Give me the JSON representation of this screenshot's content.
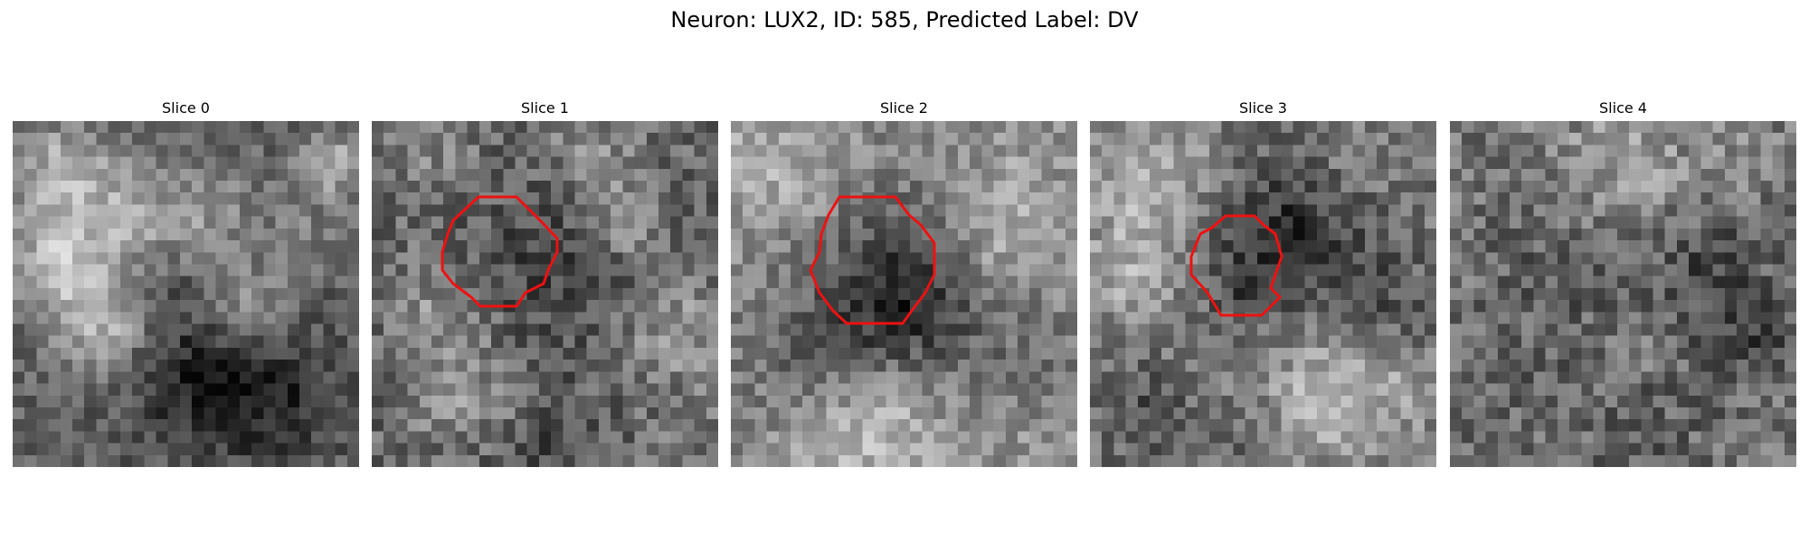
{
  "figure": {
    "title": "Neuron: LUX2, ID: 585, Predicted Label: DV"
  },
  "panels": [
    {
      "title": "Slice 0",
      "has_contour": false
    },
    {
      "title": "Slice 1",
      "has_contour": true
    },
    {
      "title": "Slice 2",
      "has_contour": true
    },
    {
      "title": "Slice 3",
      "has_contour": true
    },
    {
      "title": "Slice 4",
      "has_contour": false
    }
  ],
  "colors": {
    "contour": "#ee1111",
    "background": "#ffffff"
  }
}
